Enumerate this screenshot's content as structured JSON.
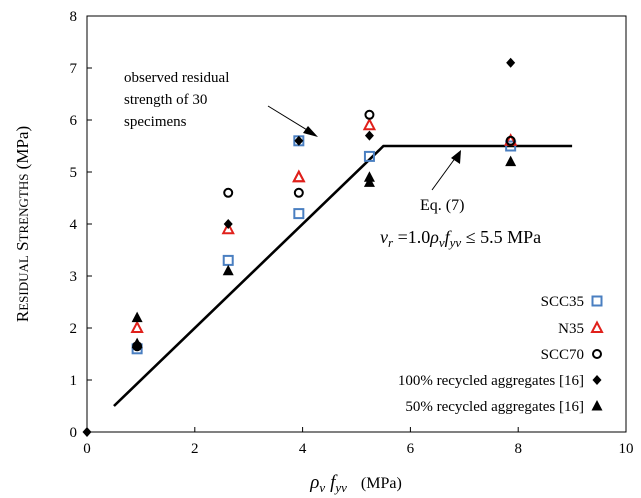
{
  "chart_data": {
    "type": "scatter",
    "ylabel": "Residual Strengths (MPa)",
    "xlabel_symbols": {
      "rho": "ρ",
      "rho_sub": "v",
      "f": "f",
      "f_sub": "yv",
      "unit": "(MPa)"
    },
    "xlim": [
      0,
      10
    ],
    "ylim": [
      0,
      8
    ],
    "x_ticks": [
      0,
      2,
      4,
      6,
      8,
      10
    ],
    "y_ticks": [
      0,
      1,
      2,
      3,
      4,
      5,
      6,
      7,
      8
    ],
    "grid": false,
    "legend_position": "bottom-right",
    "series": [
      {
        "name": "SCC35",
        "marker": "square-open",
        "color": "#4a7fc1",
        "points": [
          [
            0.93,
            1.6
          ],
          [
            2.62,
            3.3
          ],
          [
            3.93,
            5.6
          ],
          [
            3.93,
            4.2
          ],
          [
            5.24,
            5.3
          ],
          [
            7.86,
            5.5
          ]
        ]
      },
      {
        "name": "N35",
        "marker": "triangle-open",
        "color": "#e0201b",
        "points": [
          [
            0.93,
            2.0
          ],
          [
            2.62,
            3.9
          ],
          [
            3.93,
            4.9
          ],
          [
            3.93,
            4.9
          ],
          [
            5.24,
            5.9
          ],
          [
            7.86,
            5.6
          ]
        ]
      },
      {
        "name": "SCC70",
        "marker": "circle-open",
        "color": "#000000",
        "points": [
          [
            0.93,
            1.65
          ],
          [
            2.62,
            4.6
          ],
          [
            3.93,
            4.6
          ],
          [
            5.24,
            6.1
          ],
          [
            7.86,
            5.6
          ]
        ]
      },
      {
        "name": "100% recycled aggregates [16]",
        "marker": "diamond-filled",
        "color": "#000000",
        "points": [
          [
            0,
            0
          ],
          [
            0.93,
            1.65
          ],
          [
            2.62,
            4.0
          ],
          [
            3.93,
            5.6
          ],
          [
            5.24,
            5.7
          ],
          [
            7.86,
            7.1
          ]
        ]
      },
      {
        "name": "50% recycled aggregates [16]",
        "marker": "triangle-filled",
        "color": "#000000",
        "points": [
          [
            0.93,
            2.2
          ],
          [
            0.93,
            1.7
          ],
          [
            2.62,
            3.1
          ],
          [
            5.24,
            4.8
          ],
          [
            5.24,
            4.9
          ],
          [
            7.86,
            5.2
          ]
        ]
      }
    ],
    "model_line": {
      "points": [
        [
          0.5,
          0.5
        ],
        [
          5.5,
          5.5
        ],
        [
          9.0,
          5.5
        ]
      ],
      "label": "Eq. (7)",
      "equation": {
        "v": "v",
        "v_sub": "r",
        "coef": " =1.0",
        "rho": "ρ",
        "rho_sub": "v",
        "f": "f",
        "f_sub": "yv",
        "bound": " ≤ 5.5 MPa"
      }
    },
    "annotations": {
      "observed_lines": [
        "observed residual",
        "strength of 30",
        "specimens"
      ]
    }
  }
}
